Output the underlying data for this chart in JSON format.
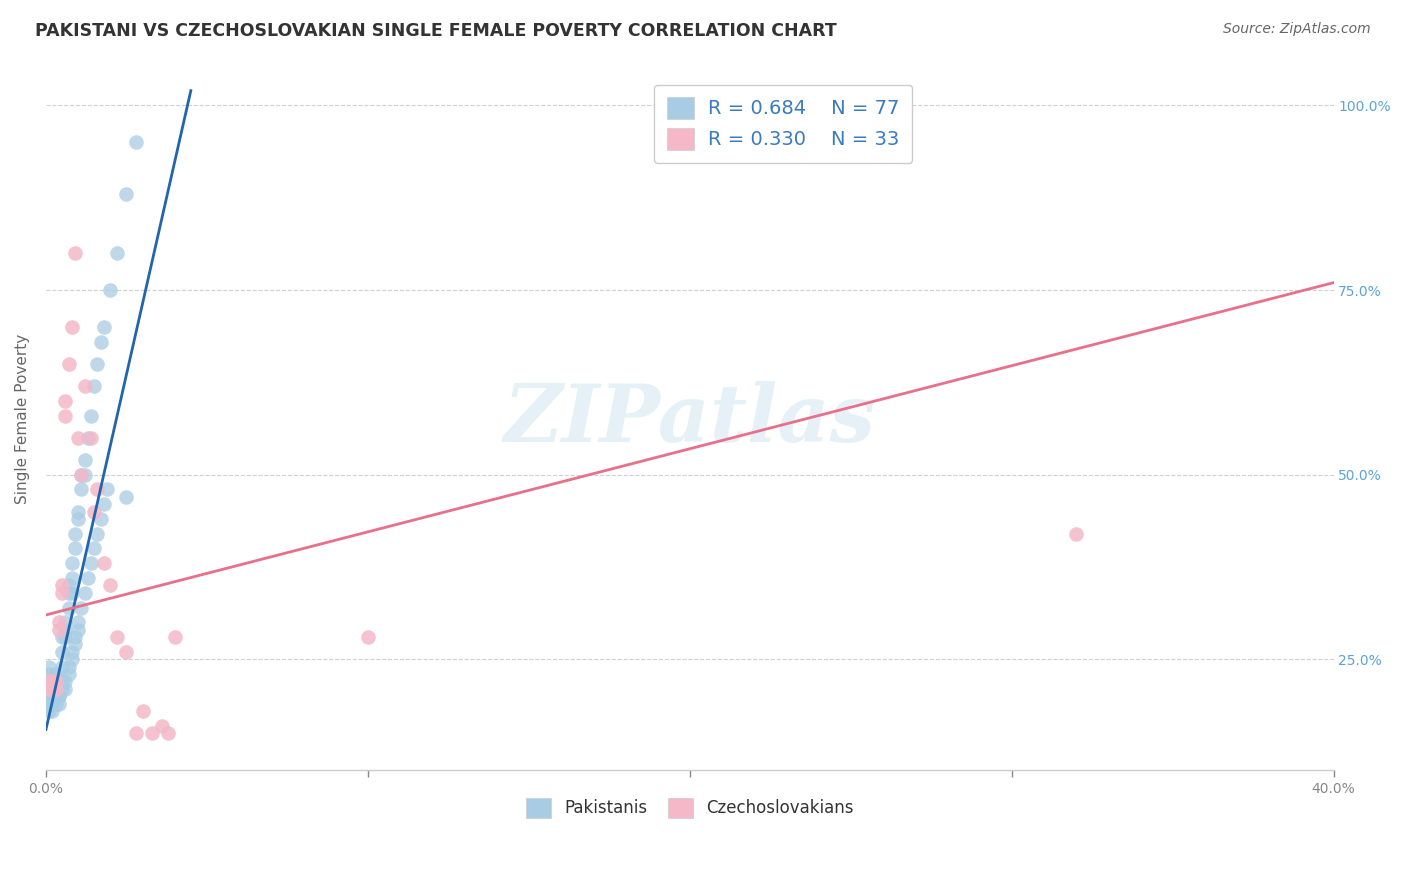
{
  "title": "PAKISTANI VS CZECHOSLOVAKIAN SINGLE FEMALE POVERTY CORRELATION CHART",
  "source": "Source: ZipAtlas.com",
  "ylabel": "Single Female Poverty",
  "legend_blue_r": "R = 0.684",
  "legend_blue_n": "N = 77",
  "legend_pink_r": "R = 0.330",
  "legend_pink_n": "N = 33",
  "legend_label_blue": "Pakistanis",
  "legend_label_pink": "Czechoslovakians",
  "watermark": "ZIPatlas",
  "blue_color": "#a8cce4",
  "pink_color": "#f4b8c8",
  "line_blue": "#2166ac",
  "line_pink": "#e8708a",
  "title_color": "#333333",
  "axis_label_color": "#666666",
  "right_tick_color": "#5ba3d9",
  "x_blue": [
    0.001,
    0.001,
    0.001,
    0.001,
    0.002,
    0.002,
    0.002,
    0.002,
    0.003,
    0.003,
    0.003,
    0.003,
    0.004,
    0.004,
    0.004,
    0.005,
    0.005,
    0.005,
    0.006,
    0.006,
    0.006,
    0.007,
    0.007,
    0.007,
    0.008,
    0.008,
    0.008,
    0.009,
    0.009,
    0.01,
    0.01,
    0.011,
    0.011,
    0.012,
    0.012,
    0.013,
    0.014,
    0.015,
    0.016,
    0.017,
    0.018,
    0.02,
    0.022,
    0.025,
    0.028,
    0.001,
    0.001,
    0.001,
    0.002,
    0.002,
    0.002,
    0.003,
    0.003,
    0.004,
    0.004,
    0.005,
    0.005,
    0.006,
    0.006,
    0.007,
    0.007,
    0.008,
    0.008,
    0.009,
    0.009,
    0.01,
    0.01,
    0.011,
    0.012,
    0.013,
    0.014,
    0.015,
    0.016,
    0.017,
    0.018,
    0.019,
    0.025
  ],
  "y_blue": [
    0.22,
    0.24,
    0.23,
    0.21,
    0.22,
    0.22,
    0.21,
    0.2,
    0.22,
    0.22,
    0.21,
    0.23,
    0.22,
    0.2,
    0.22,
    0.28,
    0.26,
    0.24,
    0.3,
    0.29,
    0.28,
    0.35,
    0.34,
    0.32,
    0.38,
    0.36,
    0.34,
    0.42,
    0.4,
    0.45,
    0.44,
    0.5,
    0.48,
    0.52,
    0.5,
    0.55,
    0.58,
    0.62,
    0.65,
    0.68,
    0.7,
    0.75,
    0.8,
    0.88,
    0.95,
    0.2,
    0.19,
    0.18,
    0.2,
    0.19,
    0.18,
    0.2,
    0.19,
    0.2,
    0.19,
    0.22,
    0.21,
    0.22,
    0.21,
    0.24,
    0.23,
    0.26,
    0.25,
    0.28,
    0.27,
    0.3,
    0.29,
    0.32,
    0.34,
    0.36,
    0.38,
    0.4,
    0.42,
    0.44,
    0.46,
    0.48,
    0.47
  ],
  "x_pink": [
    0.001,
    0.001,
    0.002,
    0.002,
    0.003,
    0.003,
    0.004,
    0.004,
    0.005,
    0.005,
    0.006,
    0.006,
    0.007,
    0.008,
    0.009,
    0.01,
    0.011,
    0.012,
    0.014,
    0.015,
    0.016,
    0.018,
    0.02,
    0.022,
    0.025,
    0.028,
    0.03,
    0.033,
    0.036,
    0.038,
    0.04,
    0.32,
    0.1
  ],
  "y_pink": [
    0.22,
    0.21,
    0.22,
    0.21,
    0.22,
    0.21,
    0.3,
    0.29,
    0.35,
    0.34,
    0.6,
    0.58,
    0.65,
    0.7,
    0.8,
    0.55,
    0.5,
    0.62,
    0.55,
    0.45,
    0.48,
    0.38,
    0.35,
    0.28,
    0.26,
    0.15,
    0.18,
    0.15,
    0.16,
    0.15,
    0.28,
    0.42,
    0.28
  ],
  "blue_line_x": [
    0.0,
    0.045
  ],
  "blue_line_y": [
    0.155,
    1.02
  ],
  "pink_line_x": [
    0.0,
    0.4
  ],
  "pink_line_y": [
    0.31,
    0.76
  ],
  "xlim": [
    0.0,
    0.4
  ],
  "ylim": [
    0.1,
    1.05
  ],
  "xticks": [
    0.0,
    0.1,
    0.2,
    0.3,
    0.4
  ],
  "xtick_labels": [
    "0.0%",
    "",
    "",
    "",
    "40.0%"
  ],
  "yticks": [
    0.25,
    0.5,
    0.75,
    1.0
  ],
  "ytick_labels_right": [
    "25.0%",
    "50.0%",
    "75.0%",
    "100.0%"
  ],
  "grid_color": "#d0d0d0",
  "background_color": "#ffffff"
}
